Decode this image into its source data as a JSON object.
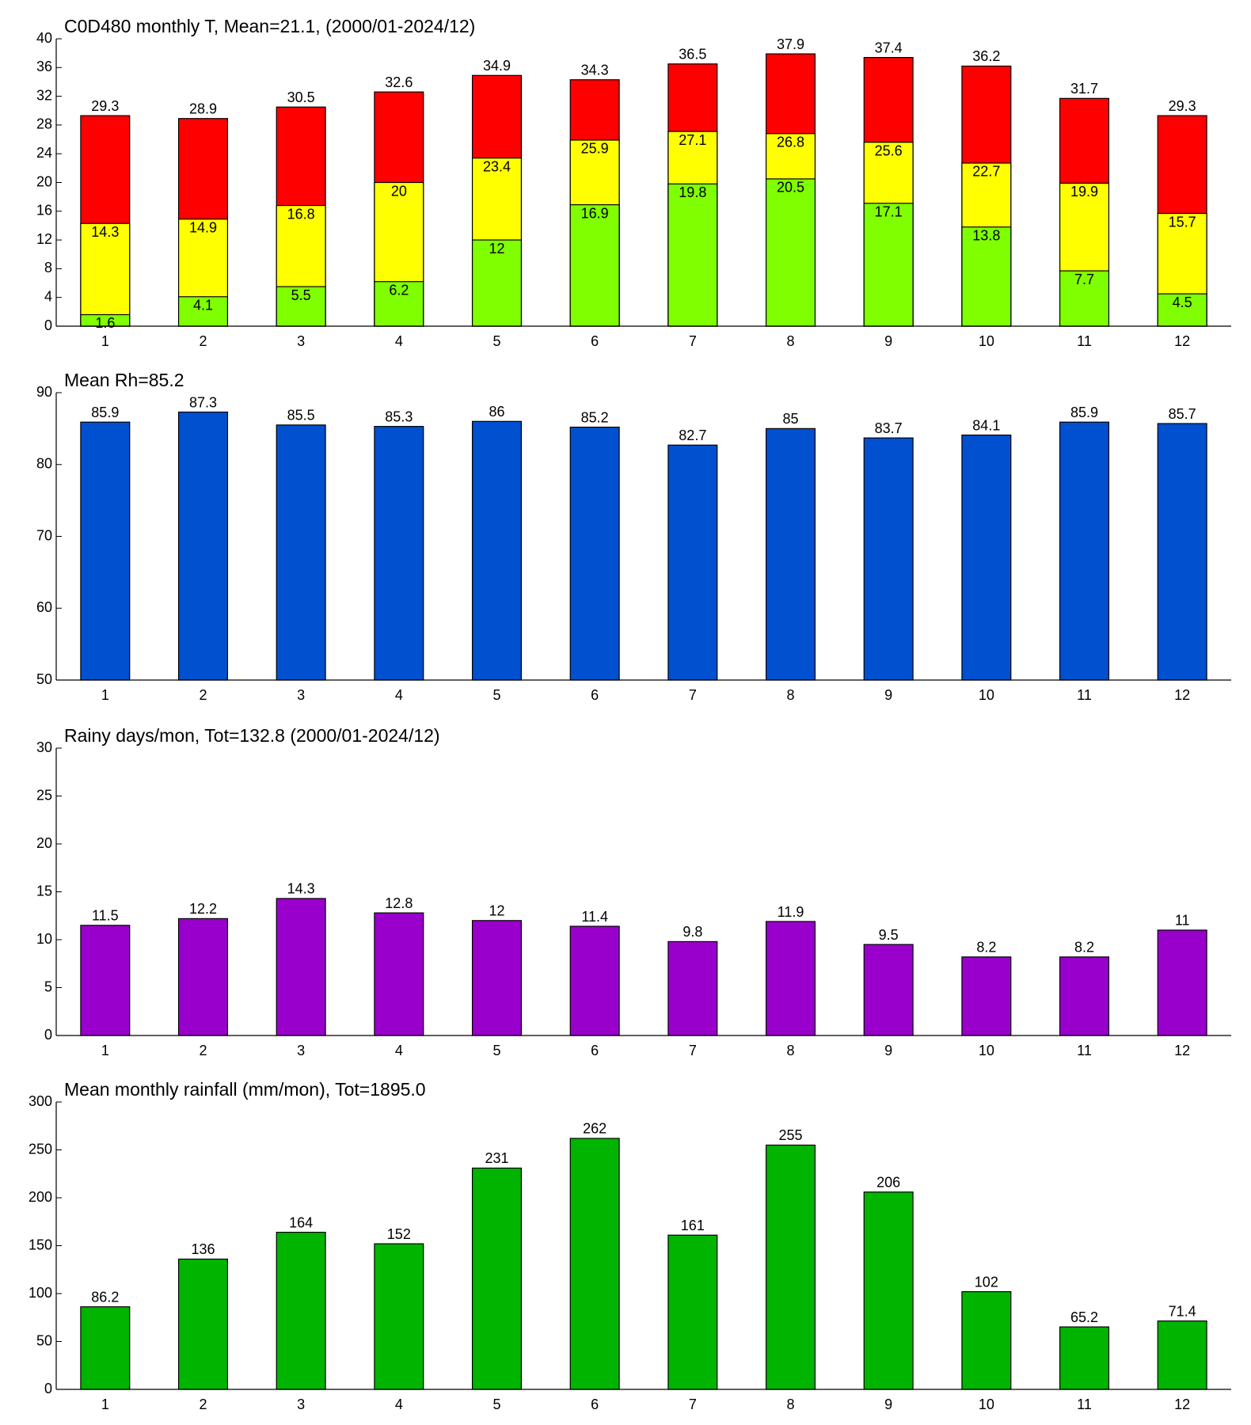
{
  "chart_data": [
    {
      "type": "bar",
      "title": "C0D480 monthly T, Mean=21.1, (2000/01-2024/12)",
      "categories": [
        1,
        2,
        3,
        4,
        5,
        6,
        7,
        8,
        9,
        10,
        11,
        12
      ],
      "series": [
        {
          "color": "#ff0000",
          "values": [
            29.3,
            28.9,
            30.5,
            32.6,
            34.9,
            34.3,
            36.5,
            37.9,
            37.4,
            36.2,
            31.7,
            29.3
          ]
        },
        {
          "color": "#ffff00",
          "values": [
            14.3,
            14.9,
            16.8,
            20,
            23.4,
            25.9,
            27.1,
            26.8,
            25.6,
            22.7,
            19.9,
            15.7
          ]
        },
        {
          "color": "#80ff00",
          "values": [
            1.6,
            4.1,
            5.5,
            6.2,
            12,
            16.9,
            19.8,
            20.5,
            17.1,
            13.8,
            7.7,
            4.5
          ]
        }
      ],
      "ylim": [
        0,
        40
      ],
      "yticks": [
        0,
        4,
        8,
        12,
        16,
        20,
        24,
        28,
        32,
        36,
        40
      ]
    },
    {
      "type": "bar",
      "title": "Mean Rh=85.2",
      "categories": [
        1,
        2,
        3,
        4,
        5,
        6,
        7,
        8,
        9,
        10,
        11,
        12
      ],
      "series": [
        {
          "color": "#0050d0",
          "values": [
            85.9,
            87.3,
            85.5,
            85.3,
            86,
            85.2,
            82.7,
            85,
            83.7,
            84.1,
            85.9,
            85.7
          ]
        }
      ],
      "ylim": [
        50,
        90
      ],
      "yticks": [
        50,
        60,
        70,
        80,
        90
      ]
    },
    {
      "type": "bar",
      "title": "Rainy days/mon, Tot=132.8 (2000/01-2024/12)",
      "categories": [
        1,
        2,
        3,
        4,
        5,
        6,
        7,
        8,
        9,
        10,
        11,
        12
      ],
      "series": [
        {
          "color": "#9900cc",
          "values": [
            11.5,
            12.2,
            14.3,
            12.8,
            12,
            11.4,
            9.8,
            11.9,
            9.5,
            8.2,
            8.2,
            11
          ]
        }
      ],
      "ylim": [
        0,
        30
      ],
      "yticks": [
        0,
        5,
        10,
        15,
        20,
        25,
        30
      ]
    },
    {
      "type": "bar",
      "title": "Mean monthly rainfall (mm/mon), Tot=1895.0",
      "categories": [
        1,
        2,
        3,
        4,
        5,
        6,
        7,
        8,
        9,
        10,
        11,
        12
      ],
      "series": [
        {
          "color": "#00b400",
          "values": [
            86.2,
            136,
            164,
            152,
            231,
            262,
            161,
            255,
            206,
            102,
            65.2,
            71.4
          ]
        }
      ],
      "ylim": [
        0,
        300
      ],
      "yticks": [
        0,
        50,
        100,
        150,
        200,
        250,
        300
      ]
    }
  ]
}
